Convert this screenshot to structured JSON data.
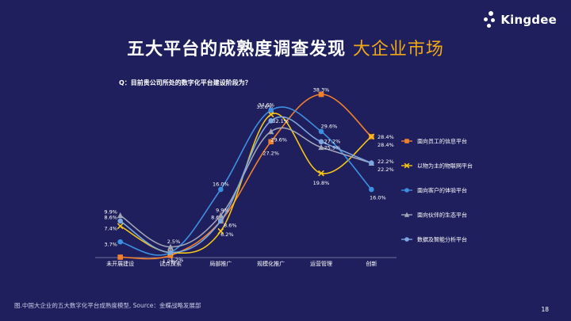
{
  "logo": {
    "text": "Kingdee"
  },
  "title": {
    "main": "五大平台的成熟度调查发现",
    "highlight": "大企业市场"
  },
  "question": "Q：目前贵公司所处的数字化平台建设阶段为？",
  "footer": "图.中国大企业的五大数字化平台成熟度模型, Source：金蝶战略发展部",
  "page_number": "18",
  "chart_data": {
    "type": "line",
    "categories": [
      "未开展建设",
      "试点探索",
      "局部推广",
      "规模化推广",
      "运营管理",
      "创新"
    ],
    "ylim": [
      0,
      40
    ],
    "grid": false,
    "legend_position": "right",
    "series": [
      {
        "name": "面向员工的信息平台",
        "marker": "square",
        "color": "#f07f2e",
        "values": [
          0.1,
          0.5,
          8.6,
          27.2,
          38.3,
          28.4
        ],
        "labels": [
          "",
          "",
          "8.6%",
          "27.2%",
          "38.3%",
          "28.4%"
        ]
      },
      {
        "name": "以物为主的物联网平台",
        "marker": "x",
        "color": "#f5c518",
        "values": [
          7.4,
          1.2,
          6.2,
          33.6,
          19.8,
          28.4
        ],
        "labels": [
          "7.4%",
          "1.2%",
          "6.2%",
          "33.6%",
          "19.8%",
          "28.4%"
        ]
      },
      {
        "name": "面向客户的体验平台",
        "marker": "circle",
        "color": "#3e8fe0",
        "values": [
          3.7,
          1.2,
          16.0,
          34.6,
          29.6,
          16.0
        ],
        "labels": [
          "3.7%",
          "1.2%",
          "16.0%",
          "34.6%",
          "29.6%",
          "16.0%"
        ]
      },
      {
        "name": "面向伙伴的生态平台",
        "marker": "triangle",
        "color": "#a2a5b8",
        "values": [
          9.9,
          2.5,
          9.9,
          29.6,
          25.9,
          22.2
        ],
        "labels": [
          "9.9%",
          "2.5%",
          "9.9%",
          "29.6%",
          "25.9%",
          "22.2%"
        ]
      },
      {
        "name": "数据及智能分析平台",
        "marker": "circle",
        "color": "#7ea7df",
        "values": [
          8.6,
          1.2,
          8.6,
          32.1,
          27.2,
          22.2
        ],
        "labels": [
          "8.6%",
          "",
          "8.6%",
          "32.1%",
          "27.2%",
          "22.2%"
        ]
      }
    ]
  }
}
